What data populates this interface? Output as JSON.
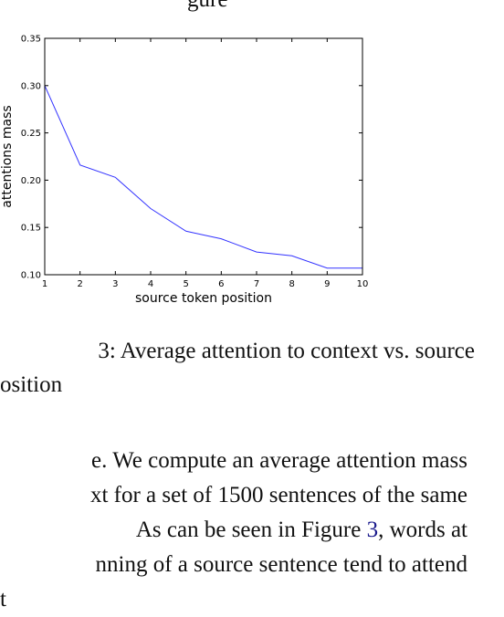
{
  "top_fragment": "gure",
  "chart_data": {
    "type": "line",
    "x": [
      1,
      2,
      3,
      4,
      5,
      6,
      7,
      8,
      9,
      10
    ],
    "series": [
      {
        "values": [
          0.3,
          0.216,
          0.203,
          0.17,
          0.146,
          0.138,
          0.124,
          0.12,
          0.107,
          0.107
        ]
      }
    ],
    "xlabel": "source token position",
    "ylabel": "attentions mass",
    "xlim": [
      1,
      10
    ],
    "ylim": [
      0.1,
      0.35
    ],
    "xticks": [
      "1",
      "2",
      "3",
      "4",
      "5",
      "6",
      "7",
      "8",
      "9",
      "10"
    ],
    "yticks": [
      "0.10",
      "0.15",
      "0.20",
      "0.25",
      "0.30",
      "0.35"
    ],
    "grid": false,
    "line_color": "#3333ff"
  },
  "caption": {
    "line1": "3:  Average attention to context vs.  source",
    "line2": "osition"
  },
  "body": {
    "line1": "e.  We compute an average attention mass",
    "line2": "xt for a set of 1500 sentences of the same",
    "line3_pre": "As can be seen in Figure ",
    "line3_ref": "3",
    "line3_post": ",  words at",
    "line4": "nning of a source sentence tend to attend",
    "line5": "t"
  }
}
